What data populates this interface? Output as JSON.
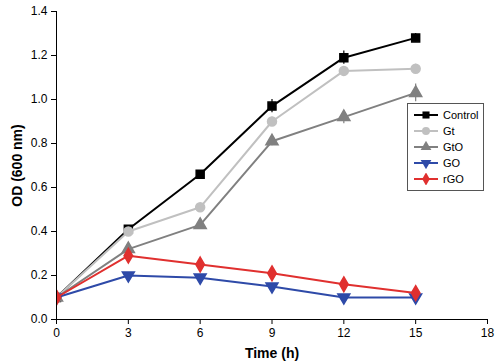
{
  "chart_data": {
    "type": "line",
    "x_label": "Time (h)",
    "y_label": "OD (600 nm)",
    "x": [
      0,
      3,
      6,
      9,
      12,
      15
    ],
    "xlim": [
      0,
      18
    ],
    "xticks": [
      0,
      3,
      6,
      9,
      12,
      15,
      18
    ],
    "ylim": [
      0,
      1.4
    ],
    "yticks": [
      {
        "value": 0,
        "label": "0.0"
      },
      0.2,
      0.4,
      0.6,
      0.8,
      {
        "value": 1,
        "label": "1.0"
      },
      1.2,
      1.4
    ],
    "legend": "right",
    "grid": false,
    "series": [
      {
        "name": "Control",
        "color": "#000000",
        "marker": "square",
        "values": [
          0.1,
          0.41,
          0.66,
          0.97,
          1.19,
          1.28
        ],
        "errors": [
          0,
          0.01,
          0.01,
          0.03,
          0.03,
          0.02
        ]
      },
      {
        "name": "Gt",
        "color": "#c0c0c0",
        "marker": "circle",
        "values": [
          0.1,
          0.4,
          0.51,
          0.9,
          1.13,
          1.14
        ],
        "errors": [
          0,
          0.01,
          0.01,
          0.02,
          0.02,
          0.02
        ]
      },
      {
        "name": "GtO",
        "color": "#808080",
        "marker": "triangle-up",
        "values": [
          0.1,
          0.32,
          0.43,
          0.81,
          0.92,
          1.03
        ],
        "errors": [
          0,
          0.01,
          0.01,
          0.02,
          0.03,
          0.04
        ]
      },
      {
        "name": "GO",
        "color": "#2e4aa8",
        "marker": "triangle-down",
        "values": [
          0.1,
          0.2,
          0.19,
          0.15,
          0.1,
          0.1
        ],
        "errors": [
          0,
          0.01,
          0.01,
          0.01,
          0.01,
          0.01
        ]
      },
      {
        "name": "rGO",
        "color": "#e0302f",
        "marker": "diamond",
        "values": [
          0.1,
          0.29,
          0.25,
          0.21,
          0.16,
          0.12
        ],
        "errors": [
          0,
          0.01,
          0.01,
          0.01,
          0.01,
          0.01
        ]
      }
    ]
  }
}
